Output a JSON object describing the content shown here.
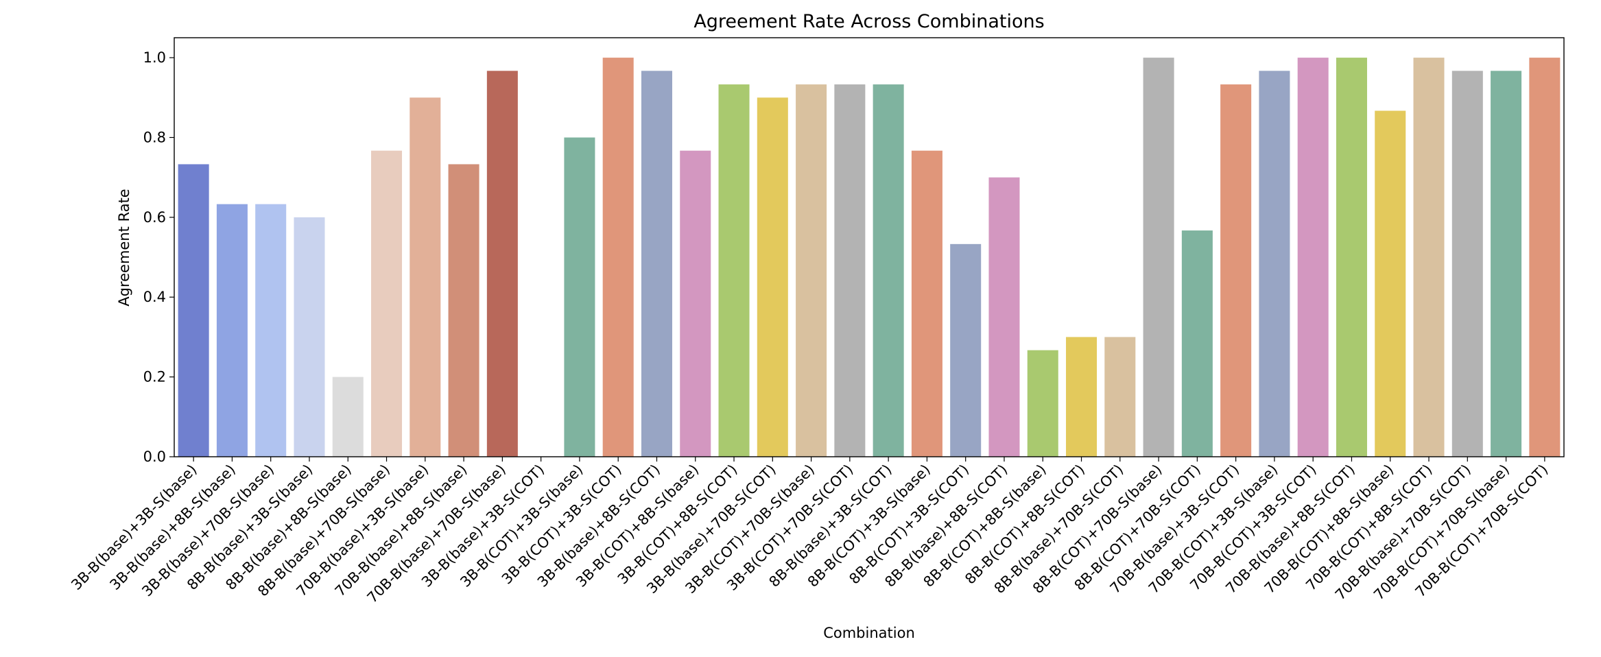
{
  "chart_data": {
    "type": "bar",
    "title": "Agreement Rate Across Combinations",
    "xlabel": "Combination",
    "ylabel": "Agreement Rate",
    "categories": [
      "3B-B(base)+3B-S(base)",
      "3B-B(base)+8B-S(base)",
      "3B-B(base)+70B-S(base)",
      "8B-B(base)+3B-S(base)",
      "8B-B(base)+8B-S(base)",
      "8B-B(base)+70B-S(base)",
      "70B-B(base)+3B-S(base)",
      "70B-B(base)+8B-S(base)",
      "70B-B(base)+70B-S(base)",
      "3B-B(base)+3B-S(COT)",
      "3B-B(COT)+3B-S(base)",
      "3B-B(COT)+3B-S(COT)",
      "3B-B(base)+8B-S(COT)",
      "3B-B(COT)+8B-S(base)",
      "3B-B(COT)+8B-S(COT)",
      "3B-B(base)+70B-S(COT)",
      "3B-B(COT)+70B-S(base)",
      "3B-B(COT)+70B-S(COT)",
      "8B-B(base)+3B-S(COT)",
      "8B-B(COT)+3B-S(base)",
      "8B-B(COT)+3B-S(COT)",
      "8B-B(base)+8B-S(COT)",
      "8B-B(COT)+8B-S(base)",
      "8B-B(COT)+8B-S(COT)",
      "8B-B(base)+70B-S(COT)",
      "8B-B(COT)+70B-S(base)",
      "8B-B(COT)+70B-S(COT)",
      "70B-B(base)+3B-S(COT)",
      "70B-B(COT)+3B-S(base)",
      "70B-B(COT)+3B-S(COT)",
      "70B-B(base)+8B-S(COT)",
      "70B-B(COT)+8B-S(base)",
      "70B-B(COT)+8B-S(COT)",
      "70B-B(base)+70B-S(COT)",
      "70B-B(COT)+70B-S(base)",
      "70B-B(COT)+70B-S(COT)"
    ],
    "values": [
      0.733,
      0.633,
      0.633,
      0.6,
      0.2,
      0.767,
      0.9,
      0.733,
      0.967,
      null,
      0.8,
      1.0,
      0.967,
      0.767,
      0.933,
      0.9,
      0.933,
      0.933,
      0.933,
      0.767,
      0.533,
      0.7,
      0.267,
      0.3,
      0.3,
      1.0,
      0.567,
      0.933,
      0.967,
      1.0,
      1.0,
      0.867,
      1.0,
      0.967,
      0.967,
      1.0
    ],
    "colors": [
      "#7080cf",
      "#8fa4e3",
      "#b0c3f0",
      "#c9d3ee",
      "#dcdcdc",
      "#e8ccbe",
      "#e2b098",
      "#d18f78",
      "#b8685a",
      null,
      "#7fb39f",
      "#e0967a",
      "#98a5c4",
      "#d397c0",
      "#a9c96f",
      "#e3c95c",
      "#d9c19f",
      "#b3b3b3",
      "#7fb39f",
      "#e0967a",
      "#98a5c4",
      "#d397c0",
      "#a9c96f",
      "#e3c95c",
      "#d9c19f",
      "#b3b3b3",
      "#7fb39f",
      "#e0967a",
      "#98a5c4",
      "#d397c0",
      "#a9c96f",
      "#e3c95c",
      "#d9c19f",
      "#b3b3b3",
      "#7fb39f",
      "#e0967a"
    ],
    "ylim": [
      0,
      1.05
    ],
    "yticks": [
      {
        "value": 0,
        "label": "0.0"
      },
      0.2,
      0.4,
      0.6,
      0.8,
      {
        "value": 1,
        "label": "1.0"
      }
    ]
  }
}
